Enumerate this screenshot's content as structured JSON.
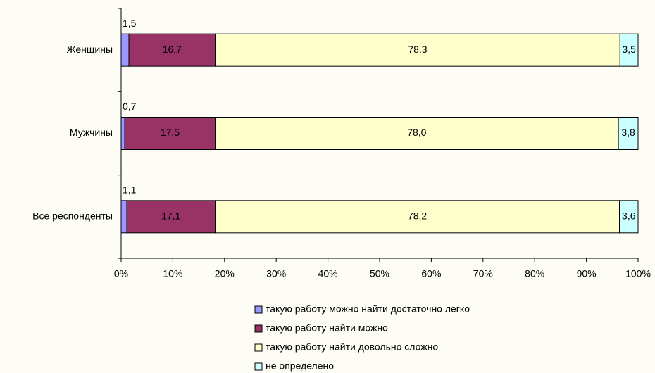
{
  "chart_data": {
    "type": "stacked_bar_horizontal",
    "categories": [
      "Женщины",
      "Мужчины",
      "Все респонденты"
    ],
    "series": [
      {
        "name": "такую работу можно найти достаточно легко",
        "color": "#9999ff",
        "values": [
          1.5,
          0.7,
          1.1
        ],
        "value_labels": [
          "1,5",
          "0,7",
          "1,1"
        ]
      },
      {
        "name": "такую работу найти можно",
        "color": "#993366",
        "values": [
          16.7,
          17.5,
          17.1
        ],
        "value_labels": [
          "16,7",
          "17,5",
          "17,1"
        ]
      },
      {
        "name": "такую работу найти довольно сложно",
        "color": "#ffffcc",
        "values": [
          78.3,
          78.0,
          78.2
        ],
        "value_labels": [
          "78,3",
          "78,0",
          "78,2"
        ]
      },
      {
        "name": "не определено",
        "color": "#ccffff",
        "values": [
          3.5,
          3.8,
          3.6
        ],
        "value_labels": [
          "3,5",
          "3,8",
          "3,6"
        ]
      }
    ],
    "xlim": [
      0,
      100
    ],
    "xticks": [
      {
        "value": 0,
        "label": "0%"
      },
      {
        "value": 10,
        "label": "10%"
      },
      {
        "value": 20,
        "label": "20%"
      },
      {
        "value": 30,
        "label": "30%"
      },
      {
        "value": 40,
        "label": "40%"
      },
      {
        "value": 50,
        "label": "50%"
      },
      {
        "value": 60,
        "label": "60%"
      },
      {
        "value": 70,
        "label": "70%"
      },
      {
        "value": 80,
        "label": "80%"
      },
      {
        "value": 90,
        "label": "90%"
      },
      {
        "value": 100,
        "label": "100%"
      }
    ],
    "legend": "bottom"
  }
}
